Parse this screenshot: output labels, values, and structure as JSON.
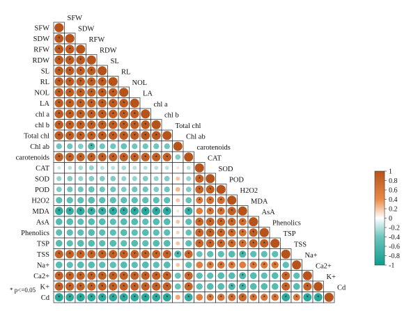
{
  "chart_data": {
    "type": "heatmap",
    "subtype": "correlation-lower-triangle",
    "variables": [
      "SFW",
      "SDW",
      "RFW",
      "RDW",
      "SL",
      "RL",
      "NOL",
      "LA",
      "chl a",
      "chl b",
      "Total chl",
      "Chl ab",
      "carotenoids",
      "CAT",
      "SOD",
      "POD",
      "H2O2",
      "MDA",
      "AsA",
      "Phenolics",
      "TSP",
      "TSS",
      "Na+",
      "Ca2+",
      "K+",
      "Cd"
    ],
    "matrix": [
      [
        1.0
      ],
      [
        0.95,
        1.0
      ],
      [
        0.94,
        0.93,
        1.0
      ],
      [
        0.93,
        0.92,
        0.94,
        1.0
      ],
      [
        0.92,
        0.91,
        0.9,
        0.9,
        1.0
      ],
      [
        0.91,
        0.9,
        0.9,
        0.89,
        0.91,
        1.0
      ],
      [
        0.9,
        0.9,
        0.89,
        0.88,
        0.9,
        0.9,
        1.0
      ],
      [
        0.9,
        0.89,
        0.89,
        0.88,
        0.89,
        0.9,
        0.91,
        1.0
      ],
      [
        0.91,
        0.9,
        0.89,
        0.88,
        0.9,
        0.89,
        0.9,
        0.9,
        1.0
      ],
      [
        0.9,
        0.89,
        0.88,
        0.88,
        0.89,
        0.89,
        0.9,
        0.9,
        0.93,
        1.0
      ],
      [
        0.91,
        0.9,
        0.89,
        0.89,
        0.9,
        0.9,
        0.9,
        0.9,
        0.95,
        0.94,
        1.0
      ],
      [
        -0.4,
        -0.4,
        -0.35,
        -0.6,
        -0.4,
        -0.4,
        -0.45,
        -0.4,
        -0.4,
        -0.4,
        -0.4,
        1.0
      ],
      [
        0.88,
        0.87,
        0.86,
        0.86,
        0.87,
        0.87,
        0.87,
        0.87,
        0.88,
        0.87,
        0.88,
        -0.35,
        1.0
      ],
      [
        -0.15,
        -0.2,
        -0.25,
        -0.3,
        -0.2,
        -0.2,
        -0.25,
        -0.2,
        -0.2,
        -0.2,
        -0.2,
        0.1,
        -0.2,
        1.0
      ],
      [
        -0.3,
        -0.35,
        -0.3,
        -0.35,
        -0.35,
        -0.35,
        -0.3,
        -0.3,
        -0.35,
        -0.3,
        -0.35,
        0.2,
        -0.3,
        0.85,
        1.0
      ],
      [
        -0.35,
        -0.4,
        -0.4,
        -0.45,
        -0.4,
        -0.4,
        -0.35,
        -0.4,
        -0.4,
        -0.35,
        -0.4,
        0.25,
        -0.35,
        0.82,
        0.86,
        1.0
      ],
      [
        -0.5,
        -0.5,
        -0.5,
        -0.55,
        -0.5,
        -0.5,
        -0.5,
        -0.5,
        -0.5,
        -0.5,
        -0.5,
        0.2,
        -0.45,
        0.6,
        0.7,
        0.72,
        1.0
      ],
      [
        -0.8,
        -0.75,
        -0.8,
        -0.75,
        -0.75,
        -0.8,
        -0.78,
        -0.8,
        -0.82,
        -0.8,
        -0.8,
        0.1,
        -0.75,
        0.55,
        0.65,
        0.7,
        0.85,
        1.0
      ],
      [
        -0.55,
        -0.55,
        -0.5,
        -0.55,
        -0.55,
        -0.5,
        -0.55,
        -0.55,
        -0.5,
        -0.55,
        -0.55,
        0.2,
        -0.5,
        0.8,
        0.82,
        0.8,
        0.78,
        0.7,
        1.0
      ],
      [
        -0.5,
        -0.5,
        -0.5,
        -0.55,
        -0.5,
        -0.5,
        -0.55,
        -0.5,
        -0.55,
        -0.5,
        -0.5,
        0.15,
        -0.45,
        0.82,
        0.85,
        0.8,
        0.75,
        0.68,
        0.86,
        1.0
      ],
      [
        -0.55,
        -0.5,
        -0.55,
        -0.55,
        -0.5,
        -0.55,
        -0.5,
        -0.55,
        -0.5,
        -0.55,
        -0.55,
        0.2,
        -0.5,
        0.8,
        0.82,
        0.78,
        0.75,
        0.7,
        0.84,
        0.85,
        1.0
      ],
      [
        0.85,
        0.84,
        0.83,
        0.82,
        0.84,
        0.84,
        0.83,
        0.83,
        0.84,
        0.83,
        0.84,
        -0.6,
        0.8,
        -0.45,
        -0.5,
        -0.5,
        -0.55,
        -0.6,
        -0.5,
        -0.5,
        -0.5,
        1.0
      ],
      [
        -0.55,
        -0.5,
        -0.55,
        -0.55,
        -0.5,
        -0.5,
        -0.55,
        -0.5,
        -0.55,
        -0.5,
        -0.55,
        0.2,
        -0.5,
        0.55,
        0.6,
        0.65,
        0.6,
        0.55,
        0.62,
        0.6,
        0.62,
        -0.5,
        1.0
      ],
      [
        0.86,
        0.85,
        0.85,
        0.84,
        0.85,
        0.85,
        0.85,
        0.84,
        0.86,
        0.85,
        0.86,
        -0.45,
        0.82,
        -0.5,
        -0.5,
        -0.55,
        -0.55,
        -0.6,
        -0.55,
        -0.5,
        -0.55,
        0.82,
        -0.5,
        1.0
      ],
      [
        0.87,
        0.86,
        0.85,
        0.85,
        0.86,
        0.86,
        0.85,
        0.85,
        0.86,
        0.86,
        0.86,
        -0.45,
        0.83,
        -0.5,
        -0.55,
        -0.55,
        -0.6,
        -0.65,
        -0.55,
        -0.55,
        -0.55,
        0.83,
        -0.55,
        0.85,
        1.0
      ],
      [
        -0.85,
        -0.8,
        -0.85,
        -0.8,
        -0.8,
        -0.8,
        -0.8,
        -0.8,
        -0.82,
        -0.8,
        -0.82,
        0.3,
        -0.78,
        0.55,
        0.62,
        0.65,
        0.7,
        0.78,
        0.65,
        0.62,
        0.65,
        -0.8,
        0.6,
        -0.82,
        -0.83,
        1.0
      ]
    ],
    "significance_marker": "*",
    "significance_threshold": 0.05,
    "legend": {
      "position": "right",
      "range": [
        -1,
        1
      ],
      "ticks": [
        "1",
        "0.8",
        "0.6",
        "0.4",
        "0.2",
        "0",
        "-0.2",
        "-0.4",
        "-0.6",
        "-0.8",
        "-1"
      ],
      "colors": {
        "negative": "#0f9b8e",
        "neutral": "#ffffff",
        "positive": "#b5531a"
      }
    },
    "grid": true
  },
  "footnote": "* p<=0.05"
}
